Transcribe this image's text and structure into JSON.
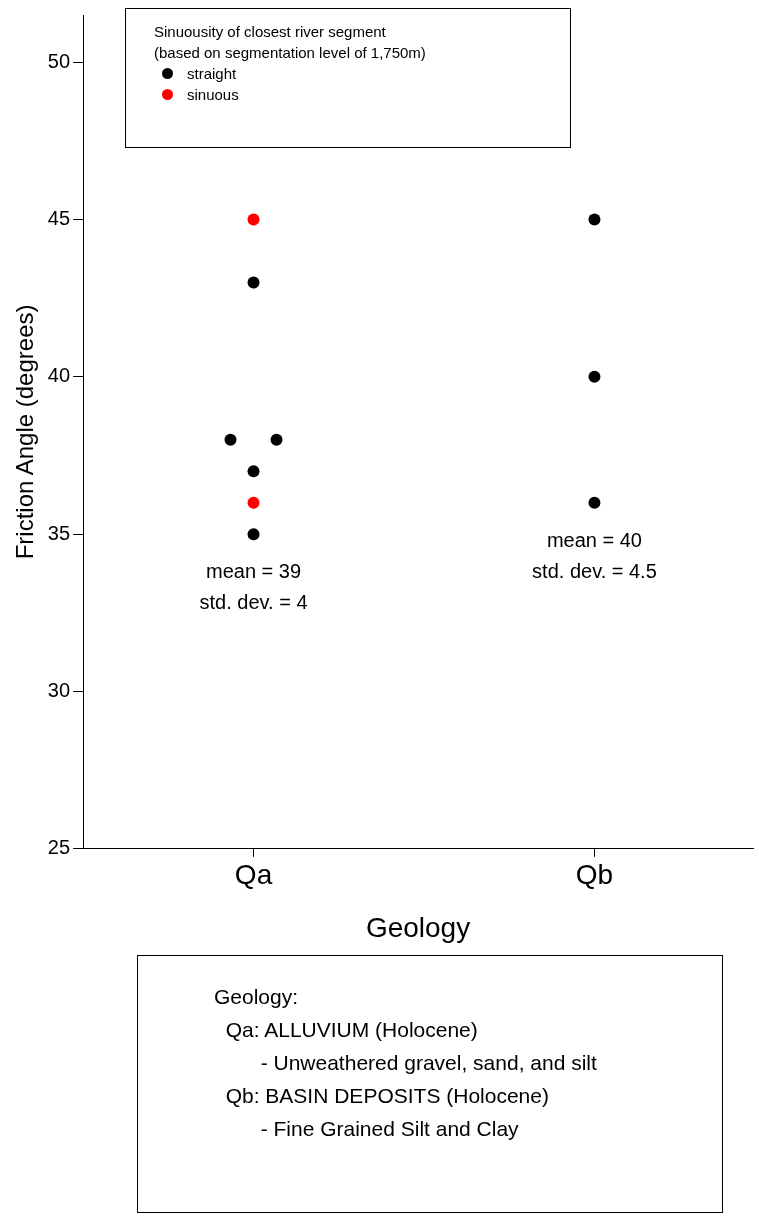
{
  "chart_data": {
    "type": "scatter",
    "xlabel": "Geology",
    "ylabel": "Friction Angle (degrees)",
    "legend_title": "Sinuousity of closest river segment\n(based on segmentation level of 1,750m)",
    "legend": "top left",
    "marker": "circle",
    "grid": false,
    "categories": [
      "Qa",
      "Qb"
    ],
    "ylim": [
      25,
      51.5
    ],
    "yticks": [
      25,
      30,
      35,
      40,
      45,
      50
    ],
    "series": [
      {
        "name": "straight",
        "color": "#000000",
        "x": [
          "Qa",
          "Qa",
          "Qa",
          "Qa",
          "Qa",
          "Qb",
          "Qb",
          "Qb"
        ],
        "values": [
          43,
          38,
          38,
          37,
          35,
          45,
          40,
          36
        ]
      },
      {
        "name": "sinuous",
        "color": "#ff0000",
        "x": [
          "Qa",
          "Qa"
        ],
        "values": [
          45,
          36
        ]
      }
    ],
    "annotations": [
      "mean = 39\nstd. dev. = 4",
      "mean = 40\nstd. dev. = 4.5",
      "Geology:\n  Qa: ALLUVIUM (Holocene)\n        - Unweathered gravel, sand, and silt\n  Qb: BASIN DEPOSITS (Holocene)\n        - Fine Grained Silt and Clay"
    ]
  }
}
